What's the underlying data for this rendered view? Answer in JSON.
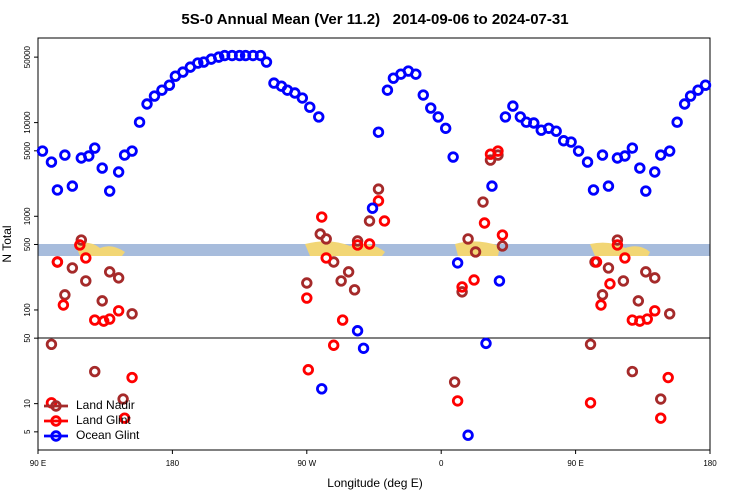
{
  "chart_data": {
    "type": "scatter",
    "title": "5S-0 Annual Mean (Ver 11.2)   2014-09-06 to 2024-07-31",
    "x_label": "Longitude (deg E)",
    "y_label": "N Total",
    "ylog": true,
    "legend": "bottom-left",
    "xlim": [
      90,
      540
    ],
    "ylim": [
      3.2,
      80000
    ],
    "xticks": [
      {
        "value": 90,
        "label": "90 E"
      },
      180,
      {
        "value": 270,
        "label": "90 W"
      },
      {
        "value": 360,
        "label": "0"
      },
      {
        "value": 450,
        "label": "90 E"
      },
      {
        "value": 540,
        "label": "180"
      }
    ],
    "yticks": [
      5,
      10,
      50,
      100,
      500,
      1000,
      5000,
      10000,
      50000
    ],
    "series": [
      {
        "name": "Land Nadir",
        "color": "#a52a2a",
        "x": [
          99,
          103,
          108,
          113,
          119,
          122,
          128,
          133,
          138,
          144,
          147,
          153,
          270,
          279,
          283,
          288,
          293,
          298,
          302,
          304,
          312,
          318,
          369,
          374,
          378,
          383,
          388,
          393,
          398,
          401,
          460,
          463,
          468,
          472,
          478,
          482,
          488,
          492,
          497,
          503,
          507,
          513
        ],
        "values": [
          43,
          325,
          145,
          281,
          558,
          204,
          22,
          125,
          255,
          220,
          11.2,
          91,
          194,
          647,
          573,
          325,
          204,
          255,
          164,
          545,
          891,
          1950,
          17,
          156,
          573,
          416,
          1420,
          3980,
          4500,
          482,
          43,
          325,
          145,
          281,
          558,
          204,
          22,
          125,
          255,
          220,
          11.2,
          91
        ]
      },
      {
        "name": "Land Glint",
        "color": "#ff0000",
        "x": [
          99,
          103,
          107,
          118,
          122,
          128,
          134,
          138,
          144,
          148,
          153,
          270,
          271,
          280,
          283,
          288,
          294,
          304,
          312,
          318,
          322,
          371,
          374,
          382,
          389,
          393,
          398,
          401,
          460,
          464,
          467,
          473,
          478,
          483,
          488,
          493,
          498,
          503,
          507,
          512
        ],
        "values": [
          10.2,
          325,
          113,
          494,
          359,
          78,
          76,
          80,
          98,
          7.0,
          19,
          134,
          23,
          982,
          359,
          42,
          78,
          494,
          506,
          1460,
          891,
          10.7,
          176,
          209,
          848,
          4600,
          4970,
          631,
          10.2,
          325,
          113,
          190,
          494,
          359,
          78,
          76,
          80,
          98,
          7.0,
          19
        ]
      },
      {
        "name": "Ocean Glint",
        "color": "#0000ff",
        "x": [
          93,
          99,
          103,
          108,
          113,
          119,
          124,
          128,
          133,
          138,
          144,
          148,
          153,
          158,
          163,
          168,
          173,
          178,
          182,
          187,
          192,
          197,
          201,
          206,
          211,
          215,
          220,
          225,
          229,
          234,
          239,
          243,
          248,
          253,
          257,
          262,
          267,
          272,
          278,
          280,
          304,
          308,
          314,
          318,
          324,
          328,
          333,
          338,
          343,
          348,
          353,
          358,
          363,
          368,
          371,
          378,
          390,
          394,
          399,
          403,
          408,
          413,
          417,
          422,
          427,
          432,
          437,
          442,
          447,
          452,
          458,
          462,
          468,
          472,
          478,
          483,
          488,
          493,
          497,
          503,
          507,
          513,
          518,
          523,
          527,
          532,
          537
        ],
        "values": [
          4970,
          3790,
          1910,
          4500,
          2100,
          4190,
          4400,
          5350,
          3270,
          1860,
          2970,
          4500,
          4970,
          10100,
          15800,
          19200,
          22200,
          25100,
          31300,
          34600,
          39100,
          43200,
          44300,
          47600,
          50000,
          52000,
          52000,
          52000,
          52000,
          52000,
          52000,
          44300,
          26400,
          24500,
          22200,
          20700,
          18300,
          14600,
          11500,
          14.4,
          60,
          39,
          1220,
          7900,
          22200,
          29800,
          32900,
          35500,
          32900,
          19700,
          14300,
          11500,
          8700,
          4290,
          318,
          4.6,
          44,
          2100,
          204,
          11500,
          15000,
          11500,
          10100,
          9900,
          8300,
          8700,
          8100,
          6400,
          6200,
          4970,
          3790,
          1910,
          4500,
          2100,
          4190,
          4400,
          5350,
          3270,
          1860,
          2970,
          4500,
          4970,
          10100,
          15800,
          19200,
          22200,
          25100
        ]
      }
    ]
  }
}
